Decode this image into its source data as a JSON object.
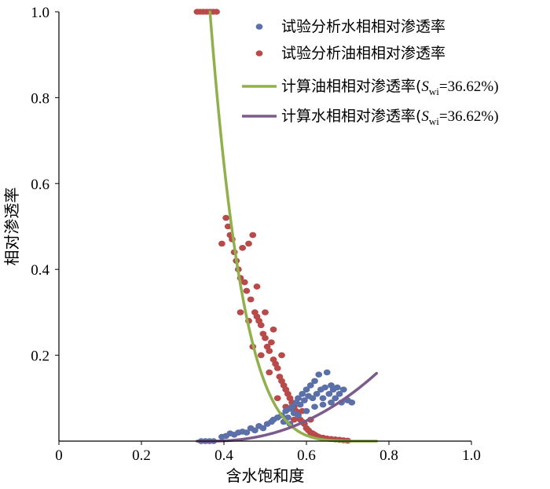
{
  "chart_data": {
    "type": "scatter",
    "title": "",
    "xlabel": "含水饱和度",
    "ylabel": "相对渗透率",
    "xlim": [
      0,
      1.0
    ],
    "ylim": [
      0,
      1.0
    ],
    "x_ticks": [
      "0",
      "0.2",
      "0.4",
      "0.6",
      "0.8",
      "1.0"
    ],
    "y_ticks": [
      "0.2",
      "0.4",
      "0.6",
      "0.8",
      "1.0"
    ],
    "grid": false,
    "legend_position": "top-right",
    "colors": {
      "water_points": "#5b6fa8",
      "oil_points": "#b84a4a",
      "oil_curve": "#8fb04a",
      "water_curve": "#7b5a8c"
    },
    "series": [
      {
        "name": "试验分析水相相对渗透率",
        "kind": "scatter",
        "points": [
          [
            0.345,
            0.0
          ],
          [
            0.355,
            0.0
          ],
          [
            0.365,
            0.0
          ],
          [
            0.375,
            0.0
          ],
          [
            0.395,
            0.01
          ],
          [
            0.405,
            0.012
          ],
          [
            0.415,
            0.018
          ],
          [
            0.425,
            0.015
          ],
          [
            0.435,
            0.02
          ],
          [
            0.445,
            0.022
          ],
          [
            0.455,
            0.02
          ],
          [
            0.465,
            0.03
          ],
          [
            0.475,
            0.025
          ],
          [
            0.485,
            0.035
          ],
          [
            0.495,
            0.03
          ],
          [
            0.505,
            0.04
          ],
          [
            0.515,
            0.045
          ],
          [
            0.52,
            0.05
          ],
          [
            0.53,
            0.055
          ],
          [
            0.54,
            0.06
          ],
          [
            0.545,
            0.045
          ],
          [
            0.55,
            0.07
          ],
          [
            0.555,
            0.055
          ],
          [
            0.56,
            0.075
          ],
          [
            0.565,
            0.08
          ],
          [
            0.57,
            0.065
          ],
          [
            0.575,
            0.09
          ],
          [
            0.58,
            0.1
          ],
          [
            0.585,
            0.085
          ],
          [
            0.59,
            0.11
          ],
          [
            0.595,
            0.095
          ],
          [
            0.6,
            0.12
          ],
          [
            0.605,
            0.105
          ],
          [
            0.61,
            0.13
          ],
          [
            0.615,
            0.1
          ],
          [
            0.62,
            0.14
          ],
          [
            0.625,
            0.11
          ],
          [
            0.63,
            0.155
          ],
          [
            0.635,
            0.12
          ],
          [
            0.64,
            0.1
          ],
          [
            0.645,
            0.125
          ],
          [
            0.65,
            0.16
          ],
          [
            0.655,
            0.11
          ],
          [
            0.66,
            0.13
          ],
          [
            0.665,
            0.12
          ],
          [
            0.67,
            0.1
          ],
          [
            0.675,
            0.125
          ],
          [
            0.68,
            0.11
          ],
          [
            0.685,
            0.09
          ],
          [
            0.69,
            0.12
          ],
          [
            0.7,
            0.095
          ],
          [
            0.71,
            0.09
          ],
          [
            0.56,
            0.04
          ],
          [
            0.58,
            0.06
          ],
          [
            0.6,
            0.07
          ],
          [
            0.62,
            0.08
          ],
          [
            0.64,
            0.085
          ],
          [
            0.66,
            0.09
          ]
        ]
      },
      {
        "name": "试验分析油相相对渗透率",
        "kind": "scatter",
        "points": [
          [
            0.335,
            1.0
          ],
          [
            0.342,
            1.0
          ],
          [
            0.35,
            1.0
          ],
          [
            0.358,
            1.0
          ],
          [
            0.366,
            1.0
          ],
          [
            0.374,
            1.0
          ],
          [
            0.382,
            1.0
          ],
          [
            0.395,
            0.46
          ],
          [
            0.405,
            0.52
          ],
          [
            0.41,
            0.5
          ],
          [
            0.415,
            0.48
          ],
          [
            0.42,
            0.47
          ],
          [
            0.425,
            0.44
          ],
          [
            0.43,
            0.42
          ],
          [
            0.435,
            0.4
          ],
          [
            0.44,
            0.38
          ],
          [
            0.445,
            0.45
          ],
          [
            0.45,
            0.37
          ],
          [
            0.455,
            0.35
          ],
          [
            0.46,
            0.46
          ],
          [
            0.465,
            0.33
          ],
          [
            0.47,
            0.48
          ],
          [
            0.475,
            0.3
          ],
          [
            0.48,
            0.29
          ],
          [
            0.485,
            0.28
          ],
          [
            0.49,
            0.27
          ],
          [
            0.495,
            0.25
          ],
          [
            0.5,
            0.24
          ],
          [
            0.505,
            0.22
          ],
          [
            0.51,
            0.21
          ],
          [
            0.515,
            0.23
          ],
          [
            0.52,
            0.19
          ],
          [
            0.525,
            0.18
          ],
          [
            0.53,
            0.17
          ],
          [
            0.535,
            0.15
          ],
          [
            0.54,
            0.14
          ],
          [
            0.545,
            0.13
          ],
          [
            0.55,
            0.12
          ],
          [
            0.555,
            0.11
          ],
          [
            0.56,
            0.1
          ],
          [
            0.565,
            0.09
          ],
          [
            0.57,
            0.08
          ],
          [
            0.575,
            0.07
          ],
          [
            0.58,
            0.06
          ],
          [
            0.585,
            0.05
          ],
          [
            0.59,
            0.045
          ],
          [
            0.595,
            0.04
          ],
          [
            0.6,
            0.03
          ],
          [
            0.605,
            0.025
          ],
          [
            0.61,
            0.02
          ],
          [
            0.615,
            0.018
          ],
          [
            0.62,
            0.015
          ],
          [
            0.625,
            0.012
          ],
          [
            0.63,
            0.01
          ],
          [
            0.64,
            0.008
          ],
          [
            0.65,
            0.006
          ],
          [
            0.66,
            0.005
          ],
          [
            0.67,
            0.004
          ],
          [
            0.68,
            0.003
          ],
          [
            0.69,
            0.002
          ],
          [
            0.7,
            0.001
          ],
          [
            0.44,
            0.3
          ],
          [
            0.46,
            0.28
          ],
          [
            0.48,
            0.36
          ],
          [
            0.5,
            0.3
          ],
          [
            0.52,
            0.26
          ],
          [
            0.54,
            0.2
          ],
          [
            0.47,
            0.22
          ],
          [
            0.49,
            0.2
          ],
          [
            0.51,
            0.16
          ],
          [
            0.53,
            0.1
          ],
          [
            0.55,
            0.08
          ],
          [
            0.57,
            0.05
          ],
          [
            0.59,
            0.07
          ],
          [
            0.61,
            0.05
          ]
        ]
      },
      {
        "name": "计算油相相对渗透率(Swi=36.62%)",
        "kind": "line",
        "formula": "kro",
        "swi": 0.3662,
        "sw_end": 0.77
      },
      {
        "name": "计算水相相对渗透率(Swi=36.62%)",
        "kind": "line",
        "formula": "krw",
        "swi": 0.3662,
        "sw_end": 0.77
      }
    ],
    "legend": [
      {
        "prefix": "试验分析水相相对渗透率",
        "subscript_part": false
      },
      {
        "prefix": "试验分析油相相对渗透率",
        "subscript_part": false
      },
      {
        "prefix": "计算油相相对渗透率(",
        "symbol": "S",
        "sub": "wi",
        "suffix": "=36.62%)"
      },
      {
        "prefix": "计算水相相对渗透率(",
        "symbol": "S",
        "sub": "wi",
        "suffix": "=36.62%)"
      }
    ]
  }
}
